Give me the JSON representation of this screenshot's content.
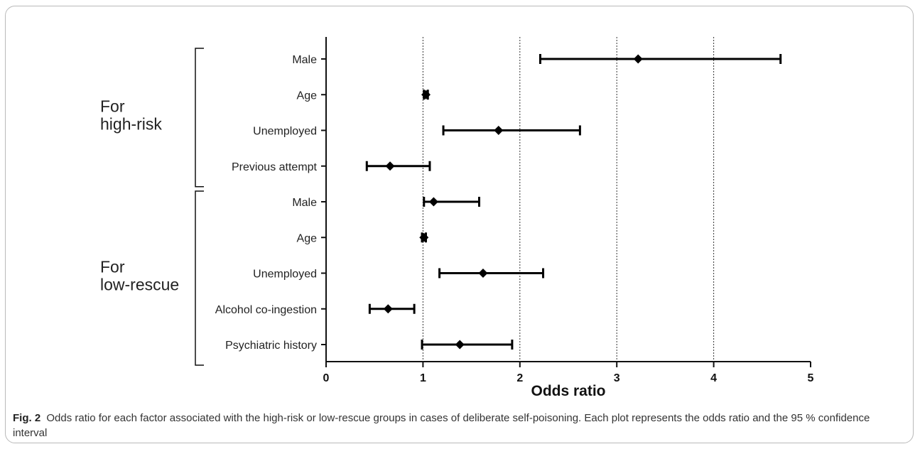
{
  "chart_data": {
    "type": "forest",
    "xlabel": "Odds ratio",
    "xlim": [
      0,
      5
    ],
    "xticks": [
      0,
      1,
      2,
      3,
      4,
      5
    ],
    "gridlines_x": [
      1,
      2,
      3,
      4
    ],
    "groups": [
      {
        "label": [
          "For",
          "high-risk"
        ],
        "rows": [
          {
            "name": "Male",
            "or": 3.22,
            "lo": 2.21,
            "hi": 4.69
          },
          {
            "name": "Age",
            "or": 1.03,
            "lo": 1.01,
            "hi": 1.05
          },
          {
            "name": "Unemployed",
            "or": 1.78,
            "lo": 1.21,
            "hi": 2.62
          },
          {
            "name": "Previous attempt",
            "or": 0.66,
            "lo": 0.42,
            "hi": 1.07
          }
        ]
      },
      {
        "label": [
          "For",
          "low-rescue"
        ],
        "rows": [
          {
            "name": "Male",
            "or": 1.11,
            "lo": 1.01,
            "hi": 1.58
          },
          {
            "name": "Age",
            "or": 1.01,
            "lo": 0.99,
            "hi": 1.03
          },
          {
            "name": "Unemployed",
            "or": 1.62,
            "lo": 1.17,
            "hi": 2.24
          },
          {
            "name": "Alcohol co-ingestion",
            "or": 0.64,
            "lo": 0.45,
            "hi": 0.91
          },
          {
            "name": "Psychiatric history",
            "or": 1.38,
            "lo": 0.99,
            "hi": 1.92
          }
        ]
      }
    ]
  },
  "caption": {
    "fig_num": "Fig. 2",
    "text": "Odds ratio for each factor associated with the high-risk or low-rescue groups in cases of deliberate self-poisoning. Each plot represents the odds ratio and the 95 % confidence interval"
  }
}
